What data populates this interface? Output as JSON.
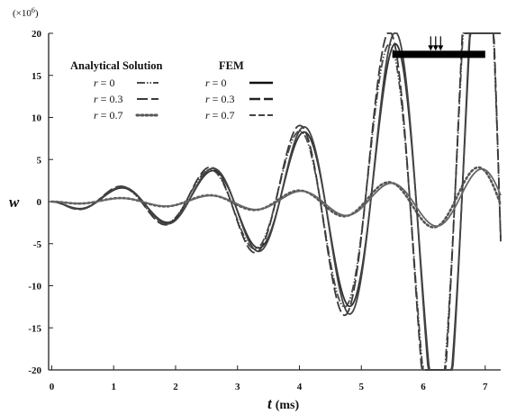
{
  "chart_data": {
    "type": "line",
    "xlabel": "t",
    "xunit": "(ms)",
    "ylabel": "w",
    "y_multiplier": "(×10",
    "y_multiplier_exp": "6",
    "y_multiplier_close": ")",
    "xlim": [
      -0.05,
      7.25
    ],
    "ylim": [
      -20,
      20
    ],
    "xticks": [
      "0",
      "1",
      "2",
      "3",
      "4",
      "5",
      "6",
      "7"
    ],
    "yticks": [
      "20",
      "15",
      "10",
      "5",
      "0",
      "-5",
      "-10",
      "-15",
      "-20"
    ],
    "legend": {
      "analytical_title": "Analytical Solution",
      "fem_title": "FEM",
      "entries": [
        {
          "label_r": "r",
          "label_rest": " = 0"
        },
        {
          "label_r": "r",
          "label_rest": " = 0.3"
        },
        {
          "label_r": "r",
          "label_rest": " = 0.7"
        }
      ]
    },
    "annotation": {
      "load_bar_start": 5.5,
      "load_bar_end": 7.0,
      "load_bar_w": 17.5
    },
    "series_params": [
      {
        "name": "Analytical r = 0",
        "omega": 4.345,
        "growth": 0.17,
        "scale": 1.0,
        "style": "dashdotdot",
        "color": "#4a4a4a"
      },
      {
        "name": "Analytical r = 0.3",
        "omega": 4.345,
        "growth": 0.17,
        "scale": 1.08,
        "style": "longdash",
        "color": "#3a3a3a"
      },
      {
        "name": "Analytical r = 0.7",
        "omega": 4.345,
        "growth": 0.12,
        "scale": 0.3,
        "style": "dotted",
        "color": "#555555"
      },
      {
        "name": "FEM r = 0",
        "omega": 4.27,
        "growth": 0.17,
        "scale": 0.95,
        "style": "solid",
        "color": "#333333"
      },
      {
        "name": "FEM r = 0.3",
        "omega": 4.27,
        "growth": 0.17,
        "scale": 1.02,
        "style": "solid",
        "color": "#444444"
      },
      {
        "name": "FEM r = 0.7",
        "omega": 4.31,
        "growth": 0.12,
        "scale": 0.28,
        "style": "solid",
        "color": "#666666"
      }
    ]
  }
}
